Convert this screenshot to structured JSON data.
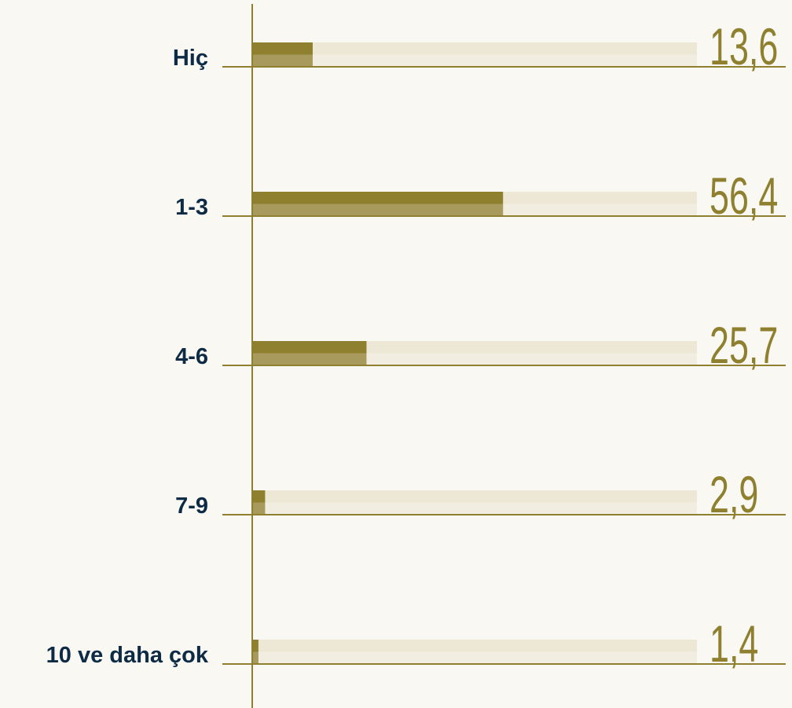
{
  "chart_data": {
    "type": "bar",
    "orientation": "horizontal",
    "categories": [
      "Hiç",
      "1-3",
      "4-6",
      "7-9",
      "10 ve daha çok"
    ],
    "values": [
      13.6,
      56.4,
      25.7,
      2.9,
      1.4
    ],
    "value_labels": [
      "13,6",
      "56,4",
      "25,7",
      "2,9",
      "1,4"
    ],
    "color": "#8f8030",
    "xlim": [
      0,
      100
    ]
  }
}
